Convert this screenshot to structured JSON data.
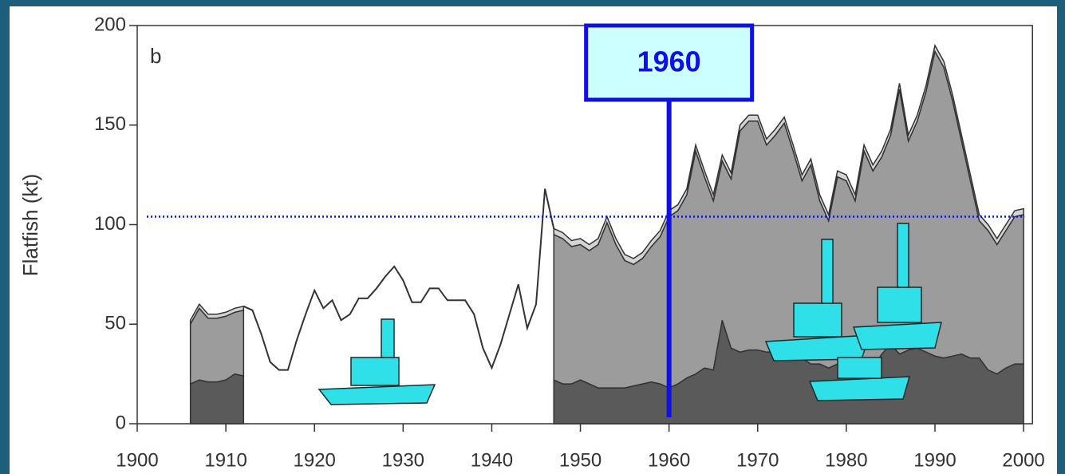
{
  "chart_data": {
    "type": "area",
    "y_label": "Flatfish (kt)",
    "panel_label": "b",
    "annotation": "1960",
    "vline": 1960,
    "hline": 104,
    "xlim": [
      1900,
      2001
    ],
    "xticks": [
      1900,
      1910,
      1920,
      1930,
      1940,
      1950,
      1960,
      1970,
      1980,
      1990,
      2000
    ],
    "ylim": [
      0,
      200
    ],
    "yticks": [
      0,
      50,
      100,
      150,
      200
    ],
    "x": [
      1906,
      1907,
      1908,
      1909,
      1910,
      1911,
      1912,
      1913,
      1914,
      1915,
      1916,
      1917,
      1918,
      1919,
      1920,
      1921,
      1922,
      1923,
      1924,
      1925,
      1926,
      1927,
      1928,
      1929,
      1930,
      1931,
      1932,
      1933,
      1934,
      1935,
      1936,
      1937,
      1938,
      1939,
      1940,
      1941,
      1942,
      1943,
      1944,
      1945,
      1946,
      1947,
      1948,
      1949,
      1950,
      1951,
      1952,
      1953,
      1954,
      1955,
      1956,
      1957,
      1958,
      1959,
      1960,
      1961,
      1962,
      1963,
      1964,
      1965,
      1966,
      1967,
      1968,
      1969,
      1970,
      1971,
      1972,
      1973,
      1974,
      1975,
      1976,
      1977,
      1978,
      1979,
      1980,
      1981,
      1982,
      1983,
      1984,
      1985,
      1986,
      1987,
      1988,
      1989,
      1990,
      1991,
      1992,
      1993,
      1994,
      1995,
      1996,
      1997,
      1998,
      1999,
      2000
    ],
    "series": [
      {
        "color": "#5a5a5a",
        "values": [
          20,
          22,
          21,
          21,
          22,
          25,
          24,
          null,
          null,
          null,
          null,
          null,
          null,
          null,
          null,
          null,
          null,
          null,
          null,
          null,
          null,
          null,
          null,
          null,
          null,
          null,
          null,
          null,
          null,
          null,
          null,
          null,
          null,
          null,
          null,
          null,
          null,
          null,
          null,
          null,
          null,
          22,
          20,
          20,
          22,
          20,
          18,
          18,
          18,
          18,
          19,
          20,
          21,
          20,
          18,
          20,
          23,
          25,
          28,
          27,
          52,
          38,
          36,
          37,
          37,
          36,
          36,
          36,
          35,
          33,
          30,
          30,
          28,
          30,
          30,
          26,
          27,
          28,
          35,
          40,
          35,
          37,
          38,
          36,
          34,
          33,
          34,
          35,
          33,
          33,
          27,
          25,
          28,
          30,
          30
        ]
      },
      {
        "color": "#9c9c9c",
        "values": [
          30,
          36,
          32,
          32,
          32,
          31,
          33,
          null,
          null,
          null,
          null,
          null,
          null,
          null,
          null,
          null,
          null,
          null,
          null,
          null,
          null,
          null,
          null,
          null,
          null,
          null,
          null,
          null,
          null,
          null,
          null,
          null,
          null,
          null,
          null,
          null,
          null,
          null,
          null,
          null,
          null,
          73,
          73,
          69,
          68,
          67,
          72,
          83,
          72,
          64,
          61,
          63,
          68,
          74,
          86,
          87,
          92,
          112,
          96,
          85,
          80,
          85,
          111,
          115,
          115,
          104,
          109,
          115,
          102,
          89,
          100,
          82,
          74,
          94,
          92,
          86,
          110,
          99,
          99,
          105,
          133,
          105,
          114,
          131,
          153,
          146,
          128,
          107,
          89,
          69,
          70,
          65,
          69,
          74,
          75
        ]
      },
      {
        "color": "#d4d4d4",
        "values": [
          2,
          2,
          2,
          2,
          2,
          2,
          2,
          null,
          null,
          null,
          null,
          null,
          null,
          null,
          null,
          null,
          null,
          null,
          null,
          null,
          null,
          null,
          null,
          null,
          null,
          null,
          null,
          null,
          null,
          null,
          null,
          null,
          null,
          null,
          null,
          null,
          null,
          null,
          null,
          null,
          null,
          3,
          3,
          3,
          3,
          3,
          3,
          3,
          3,
          3,
          3,
          3,
          3,
          3,
          3,
          3,
          3,
          3,
          3,
          3,
          3,
          3,
          3,
          3,
          3,
          3,
          3,
          3,
          3,
          3,
          3,
          3,
          3,
          3,
          3,
          3,
          3,
          3,
          3,
          3,
          3,
          3,
          3,
          3,
          3,
          3,
          3,
          3,
          3,
          3,
          3,
          3,
          3,
          3,
          3
        ]
      },
      {
        "color": "#333333",
        "values": [
          null,
          null,
          null,
          null,
          null,
          null,
          59,
          57,
          45,
          31,
          27,
          27,
          42,
          55,
          67,
          58,
          62,
          52,
          55,
          63,
          63,
          68,
          74,
          79,
          72,
          61,
          61,
          68,
          68,
          62,
          62,
          62,
          55,
          38,
          28,
          40,
          55,
          70,
          48,
          60,
          118,
          98,
          null,
          null,
          null,
          null,
          null,
          null,
          null,
          null,
          null,
          null,
          null,
          null,
          null,
          null,
          null,
          null,
          null,
          null,
          null,
          null,
          null,
          null,
          null,
          null,
          null,
          null,
          null,
          null,
          null,
          null,
          null,
          null,
          null,
          null,
          null,
          null,
          null,
          null,
          null,
          null,
          null,
          null,
          null,
          null,
          null,
          null,
          null,
          null,
          null,
          null,
          null,
          null,
          null
        ]
      }
    ]
  }
}
